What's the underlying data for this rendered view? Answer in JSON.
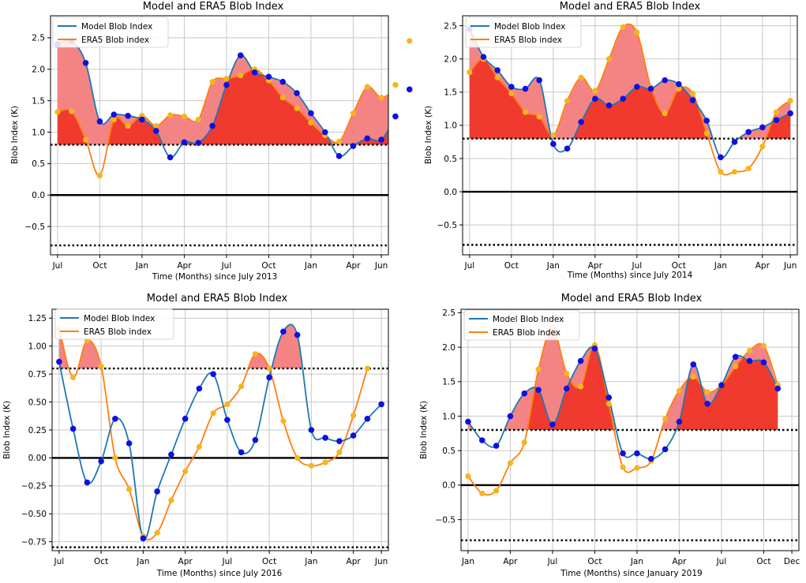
{
  "colors": {
    "model": "#1f77b4",
    "model_marker": "#1010e0",
    "era5": "#ff7f0e",
    "era5_marker": "#f5b51e",
    "fill_light": "#f48484",
    "fill_dark": "#f03a2e",
    "grid": "#c8c8c8",
    "axis": "#000000"
  },
  "chart_data": [
    {
      "type": "line",
      "title": "Model and ERA5 Blob Index",
      "xlabel": "Time (Months) since July 2013",
      "ylabel": "Blob Index (K)",
      "ylim": [
        -0.95,
        2.85
      ],
      "yticks": [
        -0.5,
        0.0,
        0.5,
        1.0,
        1.5,
        2.0,
        2.5
      ],
      "ytick_labels": [
        "−0.5",
        "0.0",
        "0.5",
        "1.0",
        "1.5",
        "2.0",
        "2.5"
      ],
      "xlim": [
        -0.5,
        23.5
      ],
      "xticks": [
        0,
        3,
        6,
        9,
        12,
        15,
        18,
        21,
        23
      ],
      "xtick_labels": [
        "Jul",
        "Oct",
        "Jan",
        "Apr",
        "Jul",
        "Oct",
        "Jan",
        "Apr",
        "Jun"
      ],
      "threshold": 0.8,
      "legend": [
        "Model Blob Index",
        "ERA5 Blob index"
      ],
      "legend_position": "top-left",
      "series": [
        {
          "name": "Model Blob Index",
          "values": [
            2.4,
            2.45,
            2.1,
            1.17,
            1.28,
            1.26,
            1.2,
            1.02,
            0.6,
            0.84,
            0.83,
            1.1,
            1.75,
            2.22,
            1.95,
            1.88,
            1.8,
            1.62,
            1.3,
            1.0,
            0.62,
            0.78,
            0.9,
            0.88,
            1.25,
            1.68
          ]
        },
        {
          "name": "ERA5 Blob index",
          "values": [
            1.32,
            1.33,
            0.88,
            0.31,
            1.2,
            1.1,
            1.26,
            1.1,
            1.27,
            1.25,
            1.2,
            1.8,
            1.85,
            1.9,
            2.0,
            1.82,
            1.55,
            1.38,
            1.15,
            0.95,
            0.85,
            1.3,
            1.72,
            1.55,
            1.75,
            2.45
          ]
        }
      ]
    },
    {
      "type": "line",
      "title": "Model and ERA5 Blob Index",
      "xlabel": "Time (Months) since July 2014",
      "ylabel": "Blob Index (K)",
      "ylim": [
        -0.95,
        2.65
      ],
      "yticks": [
        -0.5,
        0.0,
        0.5,
        1.0,
        1.5,
        2.0,
        2.5
      ],
      "ytick_labels": [
        "−0.5",
        "0.0",
        "0.5",
        "1.0",
        "1.5",
        "2.0",
        "2.5"
      ],
      "xlim": [
        -0.5,
        23.5
      ],
      "xticks": [
        0,
        3,
        6,
        9,
        12,
        15,
        18,
        21,
        23
      ],
      "xtick_labels": [
        "Jul",
        "Oct",
        "Jan",
        "Apr",
        "Jul",
        "Oct",
        "Jan",
        "Apr",
        "Jun"
      ],
      "threshold": 0.8,
      "legend": [
        "Model Blob Index",
        "ERA5 Blob index"
      ],
      "legend_position": "top-left",
      "series": [
        {
          "name": "Model Blob Index",
          "values": [
            2.45,
            2.03,
            1.83,
            1.58,
            1.55,
            1.68,
            0.72,
            0.65,
            1.05,
            1.4,
            1.3,
            1.4,
            1.58,
            1.55,
            1.68,
            1.62,
            1.38,
            1.07,
            0.52,
            0.75,
            0.9,
            0.97,
            1.08,
            1.18
          ]
        },
        {
          "name": "ERA5 Blob index",
          "values": [
            1.8,
            2.0,
            1.72,
            1.48,
            1.2,
            1.13,
            0.85,
            1.37,
            1.72,
            1.52,
            2.0,
            2.48,
            2.4,
            1.57,
            1.18,
            1.55,
            1.48,
            0.88,
            0.3,
            0.3,
            0.35,
            0.68,
            1.2,
            1.37
          ]
        }
      ]
    },
    {
      "type": "line",
      "title": "Model and ERA5 Blob Index",
      "xlabel": "Time (Months) since July 2016",
      "ylabel": "Blob Index (K)",
      "ylim": [
        -0.83,
        1.33
      ],
      "yticks": [
        -0.75,
        -0.5,
        -0.25,
        0.0,
        0.25,
        0.5,
        0.75,
        1.0,
        1.25
      ],
      "ytick_labels": [
        "−0.75",
        "−0.50",
        "−0.25",
        "0.00",
        "0.25",
        "0.50",
        "0.75",
        "1.00",
        "1.25"
      ],
      "xlim": [
        -0.5,
        23.5
      ],
      "xticks": [
        0,
        3,
        6,
        9,
        12,
        15,
        18,
        21,
        23
      ],
      "xtick_labels": [
        "Jul",
        "Oct",
        "Jan",
        "Apr",
        "Jul",
        "Oct",
        "Jan",
        "Apr",
        "Jun"
      ],
      "threshold": 0.8,
      "legend": [
        "Model Blob Index",
        "ERA5 Blob index"
      ],
      "legend_position": "top-left",
      "series": [
        {
          "name": "Model Blob Index",
          "values": [
            0.86,
            0.26,
            -0.22,
            -0.03,
            0.35,
            0.13,
            -0.72,
            -0.3,
            0.03,
            0.35,
            0.62,
            0.75,
            0.34,
            0.05,
            0.16,
            0.72,
            1.13,
            1.1,
            0.25,
            0.18,
            0.15,
            0.2,
            0.35,
            0.48
          ]
        },
        {
          "name": "ERA5 Blob index",
          "values": [
            1.15,
            0.72,
            1.05,
            0.82,
            0.0,
            -0.28,
            -0.7,
            -0.67,
            -0.38,
            -0.12,
            0.1,
            0.4,
            0.48,
            0.64,
            0.93,
            0.8,
            0.33,
            0.0,
            -0.07,
            -0.04,
            0.05,
            0.38,
            0.8
          ]
        }
      ]
    },
    {
      "type": "line",
      "title": "Model and ERA5 Blob Index",
      "xlabel": "Time (Months) since January 2019",
      "ylabel": "Blob Index (K)",
      "ylim": [
        -0.95,
        2.55
      ],
      "yticks": [
        -0.5,
        0.0,
        0.5,
        1.0,
        1.5,
        2.0,
        2.5
      ],
      "ytick_labels": [
        "−0.5",
        "0.0",
        "0.5",
        "1.0",
        "1.5",
        "2.0",
        "2.5"
      ],
      "xlim": [
        -0.5,
        23.5
      ],
      "xticks": [
        0,
        3,
        6,
        9,
        12,
        15,
        18,
        21,
        23
      ],
      "xtick_labels": [
        "Jan",
        "Apr",
        "Jul",
        "Oct",
        "Jan",
        "Apr",
        "Jul",
        "Oct",
        "Dec"
      ],
      "threshold": 0.8,
      "legend": [
        "Model Blob Index",
        "ERA5 Blob index"
      ],
      "legend_position": "top-left",
      "series": [
        {
          "name": "Model Blob Index",
          "values": [
            0.92,
            0.65,
            0.57,
            1.0,
            1.33,
            1.38,
            0.88,
            1.4,
            1.8,
            1.98,
            1.27,
            0.46,
            0.46,
            0.38,
            0.52,
            0.92,
            1.75,
            1.18,
            1.45,
            1.86,
            1.8,
            1.78,
            1.4
          ]
        },
        {
          "name": "ERA5 Blob index",
          "values": [
            0.13,
            -0.12,
            -0.08,
            0.32,
            0.62,
            1.68,
            2.28,
            1.62,
            1.43,
            2.03,
            1.18,
            0.26,
            0.25,
            0.35,
            0.96,
            1.37,
            1.57,
            1.35,
            1.45,
            1.72,
            1.95,
            2.02,
            1.45
          ]
        }
      ]
    }
  ]
}
